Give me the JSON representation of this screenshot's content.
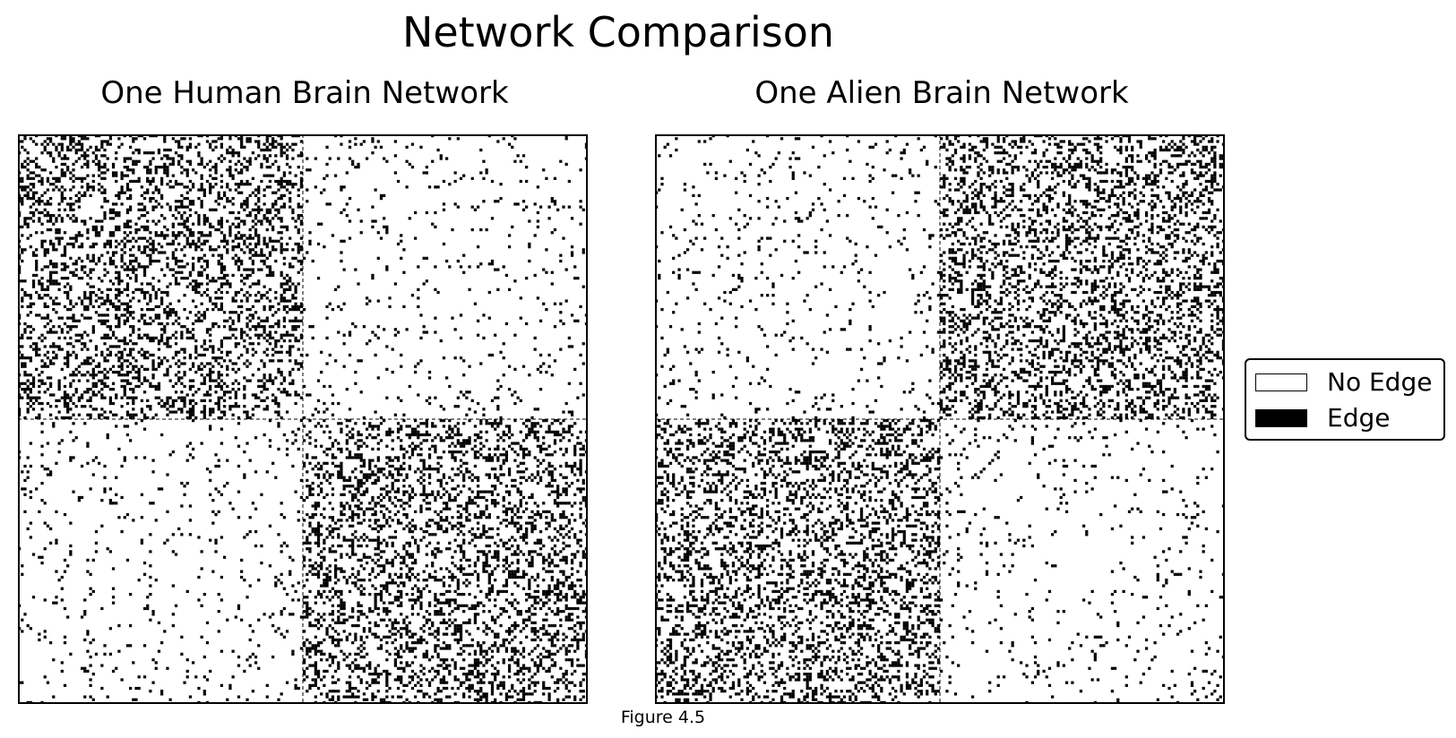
{
  "figure": {
    "suptitle": "Network Comparison",
    "caption": "Figure 4.5"
  },
  "legend": {
    "placement": "right",
    "items": [
      {
        "label": "No Edge",
        "color": "#ffffff"
      },
      {
        "label": "Edge",
        "color": "#000000"
      }
    ]
  },
  "chart_data": [
    {
      "type": "heatmap",
      "title": "One Human Brain Network",
      "n_nodes": 200,
      "community_sizes": [
        100,
        100
      ],
      "block_edge_probability": [
        [
          0.3,
          0.05
        ],
        [
          0.05,
          0.3
        ]
      ],
      "community_boundary": 100,
      "values": [
        "No Edge",
        "Edge"
      ],
      "colors": {
        "No Edge": "#ffffff",
        "Edge": "#000000"
      },
      "seed": 1
    },
    {
      "type": "heatmap",
      "title": "One Alien Brain Network",
      "n_nodes": 200,
      "community_sizes": [
        100,
        100
      ],
      "block_edge_probability": [
        [
          0.05,
          0.3
        ],
        [
          0.3,
          0.05
        ]
      ],
      "community_boundary": 100,
      "values": [
        "No Edge",
        "Edge"
      ],
      "colors": {
        "No Edge": "#ffffff",
        "Edge": "#000000"
      },
      "seed": 2
    }
  ]
}
